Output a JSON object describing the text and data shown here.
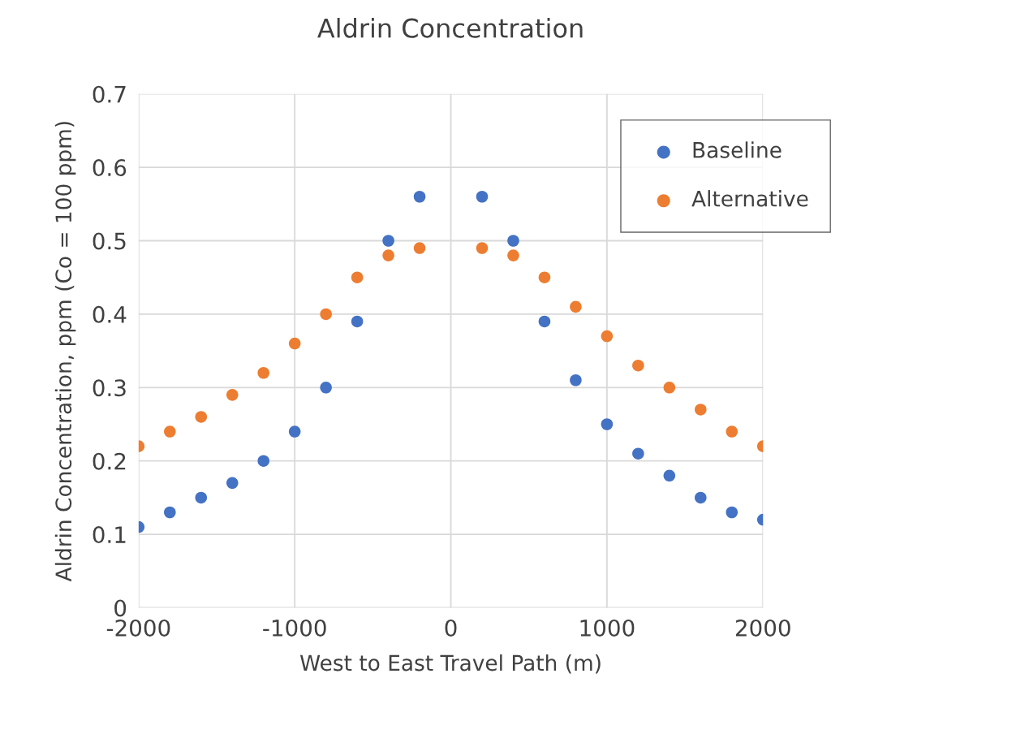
{
  "chart_data": {
    "type": "scatter",
    "title": "Aldrin Concentration",
    "xlabel": "West to East Travel Path (m)",
    "ylabel": "Aldrin Concentration, ppm (Co = 100 ppm)",
    "x": [
      -2000,
      -1800,
      -1600,
      -1400,
      -1200,
      -1000,
      -800,
      -600,
      -400,
      -200,
      200,
      400,
      600,
      800,
      1000,
      1200,
      1400,
      1600,
      1800,
      2000
    ],
    "series": [
      {
        "name": "Baseline",
        "color": "#4472c4",
        "values": [
          0.11,
          0.13,
          0.15,
          0.17,
          0.2,
          0.24,
          0.3,
          0.39,
          0.5,
          0.56,
          0.56,
          0.5,
          0.39,
          0.31,
          0.25,
          0.21,
          0.18,
          0.15,
          0.13,
          0.12
        ]
      },
      {
        "name": "Alternative",
        "color": "#ed7d31",
        "values": [
          0.22,
          0.24,
          0.26,
          0.29,
          0.32,
          0.36,
          0.4,
          0.45,
          0.48,
          0.49,
          0.49,
          0.48,
          0.45,
          0.41,
          0.37,
          0.33,
          0.3,
          0.27,
          0.24,
          0.22
        ]
      }
    ],
    "xlim": [
      -2000,
      2000
    ],
    "xticks": [
      -2000,
      -1000,
      0,
      1000,
      2000
    ],
    "ylim": [
      0,
      0.7
    ],
    "yticks": [
      0,
      0.1,
      0.2,
      0.3,
      0.4,
      0.5,
      0.6,
      0.7
    ],
    "grid": true,
    "legend": "top right",
    "marker": "circle"
  }
}
